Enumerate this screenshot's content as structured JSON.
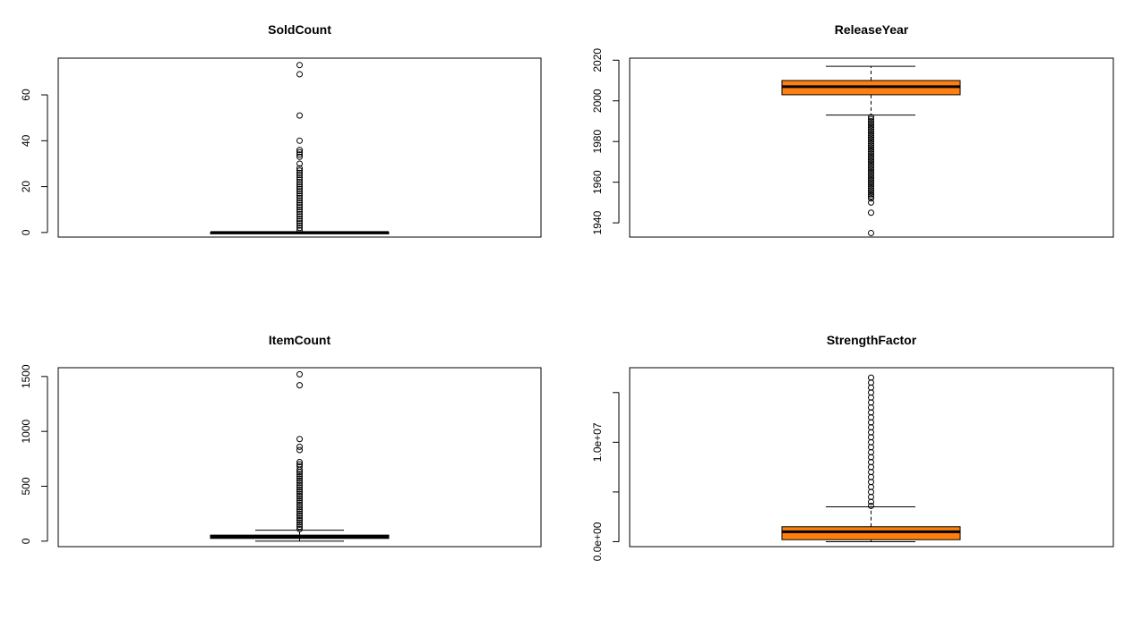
{
  "chart_data": [
    {
      "type": "boxplot",
      "title": "SoldCount",
      "xlabel": "",
      "ylabel": "",
      "ylim": [
        -2,
        76
      ],
      "yticks": [
        0,
        20,
        40,
        60
      ],
      "ytick_labels": [
        "0",
        "20",
        "40",
        "60"
      ],
      "box_color": "#ffffff",
      "box": {
        "whisker_low": 0,
        "q1": 0,
        "median": 0,
        "q3": 0,
        "whisker_high": 0
      },
      "outliers": [
        1,
        2,
        3,
        4,
        5,
        6,
        7,
        8,
        9,
        10,
        11,
        12,
        13,
        14,
        15,
        16,
        17,
        18,
        19,
        20,
        21,
        22,
        23,
        24,
        25,
        26,
        27,
        28,
        30,
        33,
        34,
        35,
        36,
        40,
        51,
        69,
        73
      ]
    },
    {
      "type": "boxplot",
      "title": "ReleaseYear",
      "xlabel": "",
      "ylabel": "",
      "ylim": [
        1933,
        2021
      ],
      "yticks": [
        1940,
        1960,
        1980,
        2000,
        2020
      ],
      "ytick_labels": [
        "1940",
        "1960",
        "1980",
        "2000",
        "2020"
      ],
      "box_color": "#ff7f0e",
      "box": {
        "whisker_low": 1993,
        "q1": 2003,
        "median": 2007,
        "q3": 2010,
        "whisker_high": 2017
      },
      "outliers": [
        1992,
        1991,
        1990,
        1989,
        1988,
        1987,
        1986,
        1985,
        1984,
        1983,
        1982,
        1981,
        1980,
        1979,
        1978,
        1977,
        1976,
        1975,
        1974,
        1973,
        1972,
        1971,
        1970,
        1969,
        1968,
        1967,
        1966,
        1965,
        1964,
        1963,
        1962,
        1961,
        1960,
        1959,
        1958,
        1957,
        1956,
        1955,
        1954,
        1953,
        1952,
        1950,
        1945,
        1935
      ]
    },
    {
      "type": "boxplot",
      "title": "ItemCount",
      "xlabel": "",
      "ylabel": "",
      "ylim": [
        -50,
        1580
      ],
      "yticks": [
        0,
        500,
        1000,
        1500
      ],
      "ytick_labels": [
        "0",
        "500",
        "1000",
        "1500"
      ],
      "box_color": "#ff7f0e",
      "box": {
        "whisker_low": 0,
        "q1": 25,
        "median": 40,
        "q3": 55,
        "whisker_high": 100
      },
      "outliers": [
        110,
        130,
        150,
        170,
        190,
        210,
        230,
        250,
        270,
        290,
        310,
        330,
        350,
        370,
        390,
        410,
        430,
        450,
        470,
        490,
        510,
        530,
        550,
        570,
        590,
        610,
        630,
        650,
        680,
        700,
        720,
        830,
        860,
        930,
        1420,
        1520
      ]
    },
    {
      "type": "boxplot",
      "title": "StrengthFactor",
      "xlabel": "",
      "ylabel": "",
      "ylim": [
        -500000,
        17500000
      ],
      "yticks": [
        0,
        5000000,
        10000000,
        15000000
      ],
      "ytick_labels": [
        "0.0e+00",
        "",
        "1.0e+07",
        ""
      ],
      "box_color": "#ff7f0e",
      "box": {
        "whisker_low": 0,
        "q1": 200000,
        "median": 1000000,
        "q3": 1500000,
        "whisker_high": 3500000
      },
      "outliers": [
        3600000,
        4000000,
        4500000,
        5000000,
        5500000,
        6000000,
        6500000,
        7000000,
        7500000,
        8000000,
        8500000,
        9000000,
        9500000,
        10000000,
        10500000,
        11000000,
        11500000,
        12000000,
        12500000,
        13000000,
        13500000,
        14000000,
        14500000,
        15000000,
        15500000,
        16000000,
        16500000
      ]
    }
  ]
}
